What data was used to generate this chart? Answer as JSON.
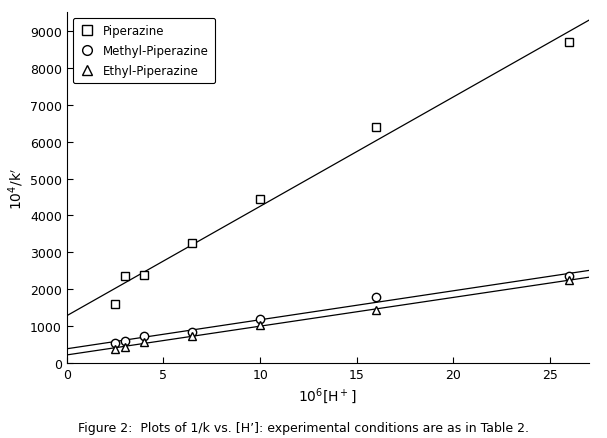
{
  "xlabel": "$10^6$[H$^+$]",
  "ylabel": "$10^4$/k$'$",
  "caption": "Figure 2:  Plots of 1/k vs. [H’]: experimental conditions are as in Table 2.",
  "piperazine_x": [
    2.5,
    3.0,
    4.0,
    6.5,
    10.0,
    16.0,
    26.0
  ],
  "piperazine_y": [
    1600,
    2350,
    2400,
    3250,
    4450,
    6400,
    8700
  ],
  "pip_intercept": 1300,
  "pip_slope": 330,
  "methyl_x": [
    2.5,
    3.0,
    4.0,
    6.5,
    10.0,
    16.0,
    26.0
  ],
  "methyl_y": [
    550,
    600,
    750,
    850,
    1200,
    1800,
    2350
  ],
  "met_intercept": 230,
  "met_slope": 80,
  "ethyl_x": [
    2.5,
    3.0,
    4.0,
    6.5,
    10.0,
    16.0,
    26.0
  ],
  "ethyl_y": [
    400,
    430,
    580,
    730,
    1050,
    1450,
    2250
  ],
  "eth_intercept": 150,
  "eth_slope": 77,
  "xlim": [
    0,
    27
  ],
  "ylim": [
    0,
    9500
  ],
  "xticks": [
    0,
    5,
    10,
    15,
    20,
    25
  ],
  "yticks": [
    0,
    1000,
    2000,
    3000,
    4000,
    5000,
    6000,
    7000,
    8000,
    9000
  ],
  "line_color": "#000000",
  "marker_color": "#000000",
  "bg_color": "#ffffff",
  "legend_labels": [
    "Piperazine",
    "Methyl-Piperazine",
    "Ethyl-Piperazine"
  ],
  "legend_markers": [
    "s",
    "o",
    "^"
  ]
}
